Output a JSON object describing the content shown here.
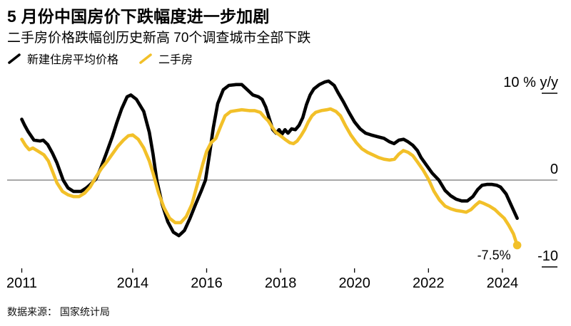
{
  "header": {
    "title": "5 月份中国房价下跌幅度进一步加剧",
    "subtitle": "二手房价格跌幅创历史新高 70个调查城市全部下跌"
  },
  "footer": {
    "source": "数据来源： 国家统计局"
  },
  "chart_data": {
    "type": "line",
    "title": "5 月份中国房价下跌幅度进一步加剧",
    "subtitle": "二手房价格跌幅创历史新高 70个调查城市全部下跌",
    "unit": "% y/y",
    "grid": "zero-baseline-only",
    "legend_position": "top-left",
    "xlim": [
      2011,
      2024.6
    ],
    "ylim": [
      -10.5,
      11.5
    ],
    "x_ticks": [
      {
        "year": 2011,
        "label": "2011"
      },
      {
        "year": 2014,
        "label": "2014"
      },
      {
        "year": 2016,
        "label": "2016"
      },
      {
        "year": 2018,
        "label": "2018"
      },
      {
        "year": 2020,
        "label": "2020"
      },
      {
        "year": 2022,
        "label": "2022"
      },
      {
        "year": 2024,
        "label": "2024"
      }
    ],
    "y_ticks": [
      {
        "value": 10,
        "label": "10 % y/y"
      },
      {
        "value": 0,
        "label": "0"
      },
      {
        "value": -10,
        "label": "-10"
      }
    ],
    "annotation": {
      "text": "-7.5%",
      "series": "二手房",
      "x": 2024.4,
      "y": -7.5
    },
    "colors": {
      "new_homes": "#000000",
      "secondhand": "#F2C029",
      "zero_line": "#757575"
    },
    "series": [
      {
        "name": "新建住房平均价格",
        "color": "#000000",
        "end_dot": false,
        "points": [
          [
            2011.0,
            7.0
          ],
          [
            2011.08,
            6.3
          ],
          [
            2011.17,
            5.6
          ],
          [
            2011.33,
            4.6
          ],
          [
            2011.5,
            4.5
          ],
          [
            2011.58,
            4.6
          ],
          [
            2011.7,
            4.1
          ],
          [
            2011.83,
            3.1
          ],
          [
            2011.95,
            2.0
          ],
          [
            2012.12,
            0.0
          ],
          [
            2012.25,
            -0.9
          ],
          [
            2012.4,
            -1.3
          ],
          [
            2012.6,
            -1.3
          ],
          [
            2012.75,
            -0.9
          ],
          [
            2012.88,
            -0.4
          ],
          [
            2013.0,
            0.1
          ],
          [
            2013.12,
            1.2
          ],
          [
            2013.28,
            3.0
          ],
          [
            2013.45,
            5.0
          ],
          [
            2013.57,
            6.6
          ],
          [
            2013.7,
            8.2
          ],
          [
            2013.85,
            9.6
          ],
          [
            2013.95,
            9.8
          ],
          [
            2014.1,
            9.3
          ],
          [
            2014.3,
            7.9
          ],
          [
            2014.45,
            5.5
          ],
          [
            2014.55,
            3.0
          ],
          [
            2014.65,
            0.0
          ],
          [
            2014.8,
            -2.8
          ],
          [
            2014.95,
            -4.8
          ],
          [
            2015.1,
            -6.0
          ],
          [
            2015.25,
            -6.4
          ],
          [
            2015.4,
            -5.8
          ],
          [
            2015.55,
            -4.4
          ],
          [
            2015.7,
            -2.8
          ],
          [
            2015.85,
            -1.3
          ],
          [
            2015.97,
            0.0
          ],
          [
            2016.08,
            3.0
          ],
          [
            2016.18,
            6.0
          ],
          [
            2016.3,
            8.8
          ],
          [
            2016.45,
            10.4
          ],
          [
            2016.6,
            10.9
          ],
          [
            2016.8,
            11.0
          ],
          [
            2016.95,
            11.0
          ],
          [
            2017.1,
            10.4
          ],
          [
            2017.25,
            9.8
          ],
          [
            2017.4,
            9.6
          ],
          [
            2017.5,
            9.3
          ],
          [
            2017.6,
            8.4
          ],
          [
            2017.7,
            7.0
          ],
          [
            2017.79,
            5.8
          ],
          [
            2017.88,
            5.4
          ],
          [
            2017.96,
            5.8
          ],
          [
            2018.04,
            5.3
          ],
          [
            2018.12,
            5.8
          ],
          [
            2018.2,
            5.4
          ],
          [
            2018.3,
            5.9
          ],
          [
            2018.4,
            5.8
          ],
          [
            2018.5,
            6.3
          ],
          [
            2018.6,
            7.2
          ],
          [
            2018.7,
            8.7
          ],
          [
            2018.8,
            9.8
          ],
          [
            2018.9,
            10.5
          ],
          [
            2019.05,
            11.0
          ],
          [
            2019.2,
            11.3
          ],
          [
            2019.3,
            11.4
          ],
          [
            2019.45,
            10.9
          ],
          [
            2019.55,
            10.1
          ],
          [
            2019.7,
            9.0
          ],
          [
            2019.85,
            7.8
          ],
          [
            2020.0,
            6.7
          ],
          [
            2020.15,
            5.9
          ],
          [
            2020.3,
            5.4
          ],
          [
            2020.45,
            5.2
          ],
          [
            2020.62,
            5.0
          ],
          [
            2020.8,
            4.8
          ],
          [
            2020.95,
            4.4
          ],
          [
            2021.07,
            4.2
          ],
          [
            2021.2,
            4.6
          ],
          [
            2021.33,
            4.7
          ],
          [
            2021.45,
            4.4
          ],
          [
            2021.58,
            4.0
          ],
          [
            2021.7,
            3.4
          ],
          [
            2021.8,
            2.6
          ],
          [
            2021.95,
            1.7
          ],
          [
            2022.1,
            0.8
          ],
          [
            2022.28,
            0.0
          ],
          [
            2022.45,
            -1.2
          ],
          [
            2022.6,
            -1.8
          ],
          [
            2022.75,
            -2.2
          ],
          [
            2022.9,
            -2.4
          ],
          [
            2023.05,
            -2.4
          ],
          [
            2023.2,
            -1.9
          ],
          [
            2023.33,
            -1.1
          ],
          [
            2023.45,
            -0.6
          ],
          [
            2023.58,
            -0.5
          ],
          [
            2023.72,
            -0.5
          ],
          [
            2023.85,
            -0.6
          ],
          [
            2023.95,
            -0.8
          ],
          [
            2024.1,
            -1.6
          ],
          [
            2024.25,
            -3.0
          ],
          [
            2024.4,
            -4.4
          ]
        ]
      },
      {
        "name": "二手房",
        "color": "#F2C029",
        "end_dot": true,
        "points": [
          [
            2011.0,
            4.7
          ],
          [
            2011.1,
            4.0
          ],
          [
            2011.2,
            3.5
          ],
          [
            2011.3,
            3.7
          ],
          [
            2011.45,
            3.3
          ],
          [
            2011.6,
            2.9
          ],
          [
            2011.72,
            2.2
          ],
          [
            2011.85,
            0.8
          ],
          [
            2011.95,
            -0.3
          ],
          [
            2012.1,
            -1.3
          ],
          [
            2012.25,
            -1.7
          ],
          [
            2012.4,
            -1.9
          ],
          [
            2012.55,
            -1.9
          ],
          [
            2012.7,
            -1.5
          ],
          [
            2012.85,
            -0.8
          ],
          [
            2013.0,
            0.3
          ],
          [
            2013.15,
            1.3
          ],
          [
            2013.3,
            2.1
          ],
          [
            2013.45,
            3.0
          ],
          [
            2013.6,
            3.9
          ],
          [
            2013.75,
            4.6
          ],
          [
            2013.88,
            5.1
          ],
          [
            2014.0,
            5.2
          ],
          [
            2014.15,
            4.7
          ],
          [
            2014.3,
            3.7
          ],
          [
            2014.45,
            2.2
          ],
          [
            2014.55,
            0.8
          ],
          [
            2014.7,
            -1.5
          ],
          [
            2014.85,
            -3.2
          ],
          [
            2015.0,
            -4.4
          ],
          [
            2015.15,
            -4.9
          ],
          [
            2015.3,
            -4.9
          ],
          [
            2015.45,
            -4.2
          ],
          [
            2015.6,
            -2.8
          ],
          [
            2015.78,
            0.0
          ],
          [
            2015.9,
            1.9
          ],
          [
            2016.0,
            3.3
          ],
          [
            2016.12,
            4.3
          ],
          [
            2016.25,
            4.8
          ],
          [
            2016.38,
            6.2
          ],
          [
            2016.5,
            7.4
          ],
          [
            2016.65,
            7.9
          ],
          [
            2016.8,
            8.0
          ],
          [
            2016.95,
            8.1
          ],
          [
            2017.15,
            8.0
          ],
          [
            2017.3,
            8.0
          ],
          [
            2017.45,
            7.8
          ],
          [
            2017.55,
            7.3
          ],
          [
            2017.67,
            6.8
          ],
          [
            2017.77,
            6.1
          ],
          [
            2017.87,
            5.5
          ],
          [
            2018.0,
            5.1
          ],
          [
            2018.12,
            4.7
          ],
          [
            2018.25,
            4.3
          ],
          [
            2018.35,
            4.2
          ],
          [
            2018.45,
            4.5
          ],
          [
            2018.55,
            5.1
          ],
          [
            2018.65,
            5.8
          ],
          [
            2018.75,
            6.7
          ],
          [
            2018.85,
            7.4
          ],
          [
            2018.95,
            7.8
          ],
          [
            2019.1,
            8.0
          ],
          [
            2019.25,
            8.1
          ],
          [
            2019.35,
            8.2
          ],
          [
            2019.5,
            7.9
          ],
          [
            2019.62,
            7.4
          ],
          [
            2019.75,
            6.3
          ],
          [
            2019.9,
            5.2
          ],
          [
            2020.05,
            4.3
          ],
          [
            2020.2,
            3.6
          ],
          [
            2020.35,
            3.2
          ],
          [
            2020.5,
            2.9
          ],
          [
            2020.65,
            2.6
          ],
          [
            2020.8,
            2.4
          ],
          [
            2020.95,
            2.3
          ],
          [
            2021.08,
            2.4
          ],
          [
            2021.2,
            3.0
          ],
          [
            2021.32,
            3.4
          ],
          [
            2021.45,
            3.2
          ],
          [
            2021.58,
            2.8
          ],
          [
            2021.7,
            2.1
          ],
          [
            2021.85,
            1.2
          ],
          [
            2022.0,
            0.1
          ],
          [
            2022.15,
            -1.3
          ],
          [
            2022.3,
            -2.3
          ],
          [
            2022.45,
            -3.0
          ],
          [
            2022.6,
            -3.3
          ],
          [
            2022.75,
            -3.5
          ],
          [
            2022.9,
            -3.6
          ],
          [
            2023.02,
            -3.7
          ],
          [
            2023.15,
            -3.4
          ],
          [
            2023.27,
            -2.9
          ],
          [
            2023.38,
            -2.5
          ],
          [
            2023.5,
            -2.7
          ],
          [
            2023.65,
            -3.0
          ],
          [
            2023.8,
            -3.4
          ],
          [
            2023.92,
            -3.9
          ],
          [
            2024.05,
            -4.4
          ],
          [
            2024.17,
            -5.2
          ],
          [
            2024.3,
            -6.2
          ],
          [
            2024.4,
            -7.5
          ]
        ]
      }
    ]
  }
}
